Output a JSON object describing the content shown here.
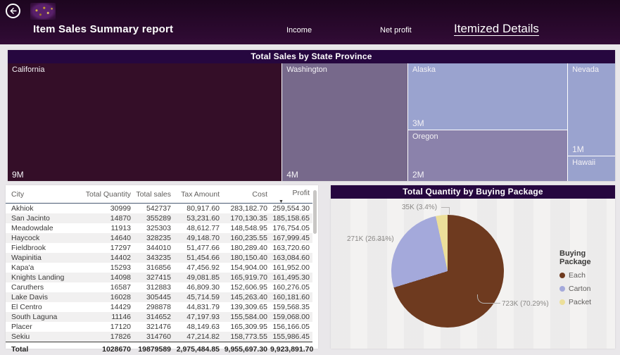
{
  "header": {
    "title": "Item Sales Summary report",
    "nav": [
      {
        "label": "Income",
        "active": false
      },
      {
        "label": "Net profit",
        "active": false
      },
      {
        "label": "Itemized Details",
        "active": true
      }
    ]
  },
  "colors": {
    "header_bg": "#2d0a31",
    "visual_title_bg": "#26073f",
    "page_bg": "#e9e7ea"
  },
  "chart_data": [
    {
      "type": "treemap",
      "title": "Total Sales by State Province",
      "nodes": [
        {
          "name": "California",
          "value": "9M",
          "color": "#340e28"
        },
        {
          "name": "Washington",
          "value": "4M",
          "color": "#77698b"
        },
        {
          "name": "Alaska",
          "value": "3M",
          "color": "#9aa3cf"
        },
        {
          "name": "Oregon",
          "value": "2M",
          "color": "#8b82ab"
        },
        {
          "name": "Nevada",
          "value": "1M",
          "color": "#9aa3cf"
        },
        {
          "name": "Hawaii",
          "value": "",
          "color": "#99a2cd"
        }
      ]
    },
    {
      "type": "pie",
      "title": "Total Quantity by Buying Package",
      "legend_title": "Buying Package",
      "legend_position": "right",
      "slices": [
        {
          "name": "Each",
          "value": "723K",
          "pct": 70.29,
          "label": "723K (70.29%)",
          "color": "#6e3a1f"
        },
        {
          "name": "Carton",
          "value": "271K",
          "pct": 26.31,
          "label": "271K (26.31%)",
          "color": "#a4a9db"
        },
        {
          "name": "Packet",
          "value": "35K",
          "pct": 3.4,
          "label": "35K (3.4%)",
          "color": "#ecdf9a"
        }
      ]
    },
    {
      "type": "table",
      "columns": [
        "City",
        "Total Quantity",
        "Total sales",
        "Tax Amount",
        "Cost",
        "Profit"
      ],
      "sort_column": "Profit",
      "sort_direction": "desc",
      "rows": [
        [
          "Akhiok",
          "30999",
          "542737",
          "80,917.60",
          "283,182.70",
          "259,554.30"
        ],
        [
          "San Jacinto",
          "14870",
          "355289",
          "53,231.60",
          "170,130.35",
          "185,158.65"
        ],
        [
          "Meadowdale",
          "11913",
          "325303",
          "48,612.77",
          "148,548.95",
          "176,754.05"
        ],
        [
          "Haycock",
          "14640",
          "328235",
          "49,148.70",
          "160,235.55",
          "167,999.45"
        ],
        [
          "Fieldbrook",
          "17297",
          "344010",
          "51,477.66",
          "180,289.40",
          "163,720.60"
        ],
        [
          "Wapinitia",
          "14402",
          "343235",
          "51,454.66",
          "180,150.40",
          "163,084.60"
        ],
        [
          "Kapa'a",
          "15293",
          "316856",
          "47,456.92",
          "154,904.00",
          "161,952.00"
        ],
        [
          "Knights Landing",
          "14098",
          "327415",
          "49,081.85",
          "165,919.70",
          "161,495.30"
        ],
        [
          "Caruthers",
          "16587",
          "312883",
          "46,809.30",
          "152,606.95",
          "160,276.05"
        ],
        [
          "Lake Davis",
          "16028",
          "305445",
          "45,714.59",
          "145,263.40",
          "160,181.60"
        ],
        [
          "El Centro",
          "14429",
          "298878",
          "44,831.79",
          "139,309.65",
          "159,568.35"
        ],
        [
          "South Laguna",
          "11146",
          "314652",
          "47,197.93",
          "155,584.00",
          "159,068.00"
        ],
        [
          "Placer",
          "17120",
          "321476",
          "48,149.63",
          "165,309.95",
          "156,166.05"
        ],
        [
          "Sekiu",
          "17826",
          "314760",
          "47,214.82",
          "158,773.55",
          "155,986.45"
        ]
      ],
      "total": [
        "Total",
        "1028670",
        "19879589",
        "2,975,484.85",
        "9,955,697.30",
        "9,923,891.70"
      ]
    }
  ]
}
